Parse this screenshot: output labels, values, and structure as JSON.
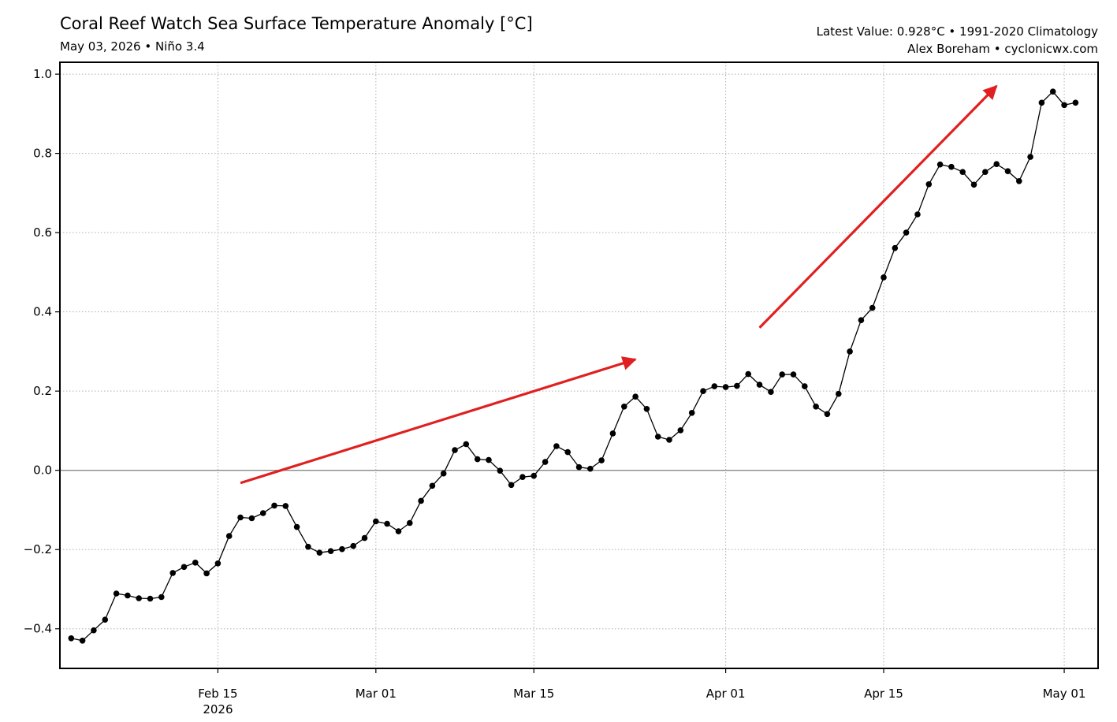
{
  "header": {
    "title": "Coral Reef Watch Sea Surface Temperature Anomaly [°C]",
    "subtitle": "May 03, 2026 • Niño 3.4",
    "latest": "Latest Value: 0.928°C • 1991-2020 Climatology",
    "credit": "Alex Boreham • cyclonicwx.com"
  },
  "chart_data": {
    "type": "line",
    "title": "Coral Reef Watch Sea Surface Temperature Anomaly [°C]",
    "subtitle": "May 03, 2026 • Niño 3.4",
    "xlabel": "",
    "ylabel": "",
    "x_start_date": "2026-02-02",
    "xlim": [
      "2026-02-01",
      "2026-05-04"
    ],
    "ylim": [
      -0.5,
      1.03
    ],
    "yticks": [
      -0.4,
      -0.2,
      0.0,
      0.2,
      0.4,
      0.6,
      0.8,
      1.0
    ],
    "ytick_labels": [
      "−0.4",
      "−0.2",
      "0.0",
      "0.2",
      "0.4",
      "0.6",
      "0.8",
      "1.0"
    ],
    "xticks": [
      {
        "date": "2026-02-15",
        "label": "Feb 15",
        "sublabel": "2026"
      },
      {
        "date": "2026-03-01",
        "label": "Mar 01",
        "sublabel": ""
      },
      {
        "date": "2026-03-15",
        "label": "Mar 15",
        "sublabel": ""
      },
      {
        "date": "2026-04-01",
        "label": "Apr 01",
        "sublabel": ""
      },
      {
        "date": "2026-04-15",
        "label": "Apr 15",
        "sublabel": ""
      },
      {
        "date": "2026-05-01",
        "label": "May 01",
        "sublabel": ""
      }
    ],
    "grid": true,
    "zero_line": true,
    "series": [
      {
        "values": [
          -0.424,
          -0.43,
          -0.404,
          -0.377,
          -0.311,
          -0.316,
          -0.323,
          -0.324,
          -0.32,
          -0.259,
          -0.244,
          -0.233,
          -0.26,
          -0.235,
          -0.166,
          -0.119,
          -0.121,
          -0.108,
          -0.089,
          -0.09,
          -0.143,
          -0.193,
          -0.208,
          -0.204,
          -0.199,
          -0.191,
          -0.171,
          -0.129,
          -0.135,
          -0.154,
          -0.133,
          -0.077,
          -0.039,
          -0.008,
          0.051,
          0.066,
          0.028,
          0.026,
          -0.001,
          -0.037,
          -0.017,
          -0.014,
          0.021,
          0.061,
          0.046,
          0.008,
          0.004,
          0.025,
          0.093,
          0.161,
          0.186,
          0.155,
          0.085,
          0.077,
          0.101,
          0.145,
          0.2,
          0.212,
          0.21,
          0.213,
          0.243,
          0.216,
          0.198,
          0.242,
          0.242,
          0.212,
          0.161,
          0.142,
          0.193,
          0.3,
          0.379,
          0.41,
          0.487,
          0.561,
          0.6,
          0.646,
          0.722,
          0.772,
          0.766,
          0.753,
          0.721,
          0.753,
          0.773,
          0.755,
          0.73,
          0.791,
          0.928,
          0.956,
          0.922,
          0.928
        ],
        "color": "#000000"
      }
    ],
    "arrows": [
      {
        "from": {
          "date": "2026-02-17",
          "value": -0.032
        },
        "to": {
          "date": "2026-03-24",
          "value": 0.28
        },
        "color": "#e02020"
      },
      {
        "from": {
          "date": "2026-04-04",
          "value": 0.36
        },
        "to": {
          "date": "2026-04-25",
          "value": 0.97
        },
        "color": "#e02020"
      }
    ]
  }
}
